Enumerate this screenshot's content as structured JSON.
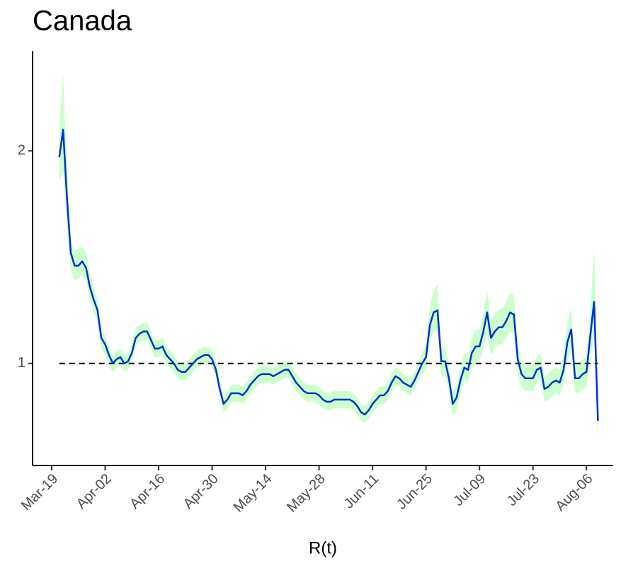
{
  "chart_data": {
    "type": "line",
    "title": "Canada",
    "xlabel": "R(t)",
    "x": [
      "Mar-21",
      "Mar-22",
      "Mar-23",
      "Mar-24",
      "Mar-25",
      "Mar-26",
      "Mar-27",
      "Mar-28",
      "Mar-29",
      "Mar-30",
      "Mar-31",
      "Apr-01",
      "Apr-02",
      "Apr-03",
      "Apr-04",
      "Apr-05",
      "Apr-06",
      "Apr-07",
      "Apr-08",
      "Apr-09",
      "Apr-10",
      "Apr-11",
      "Apr-12",
      "Apr-13",
      "Apr-14",
      "Apr-15",
      "Apr-16",
      "Apr-17",
      "Apr-18",
      "Apr-19",
      "Apr-20",
      "Apr-21",
      "Apr-22",
      "Apr-23",
      "Apr-24",
      "Apr-25",
      "Apr-26",
      "Apr-27",
      "Apr-28",
      "Apr-29",
      "Apr-30",
      "May-01",
      "May-02",
      "May-03",
      "May-04",
      "May-05",
      "May-06",
      "May-07",
      "May-08",
      "May-09",
      "May-10",
      "May-11",
      "May-12",
      "May-13",
      "May-14",
      "May-15",
      "May-16",
      "May-17",
      "May-18",
      "May-19",
      "May-20",
      "May-21",
      "May-22",
      "May-23",
      "May-24",
      "May-25",
      "May-26",
      "May-27",
      "May-28",
      "May-29",
      "May-30",
      "May-31",
      "Jun-01",
      "Jun-02",
      "Jun-03",
      "Jun-04",
      "Jun-05",
      "Jun-06",
      "Jun-07",
      "Jun-08",
      "Jun-09",
      "Jun-10",
      "Jun-11",
      "Jun-12",
      "Jun-13",
      "Jun-14",
      "Jun-15",
      "Jun-16",
      "Jun-17",
      "Jun-18",
      "Jun-19",
      "Jun-20",
      "Jun-21",
      "Jun-22",
      "Jun-23",
      "Jun-24",
      "Jun-25",
      "Jun-26",
      "Jun-27",
      "Jun-28",
      "Jun-29",
      "Jun-30",
      "Jul-01",
      "Jul-02",
      "Jul-03",
      "Jul-04",
      "Jul-05",
      "Jul-06",
      "Jul-07",
      "Jul-08",
      "Jul-09",
      "Jul-10",
      "Jul-11",
      "Jul-12",
      "Jul-13",
      "Jul-14",
      "Jul-15",
      "Jul-16",
      "Jul-17",
      "Jul-18",
      "Jul-19",
      "Jul-20",
      "Jul-21",
      "Jul-22",
      "Jul-23",
      "Jul-24",
      "Jul-25",
      "Jul-26",
      "Jul-27",
      "Jul-28",
      "Jul-29",
      "Jul-30",
      "Jul-31",
      "Aug-01",
      "Aug-02",
      "Aug-03",
      "Aug-04",
      "Aug-05",
      "Aug-06",
      "Aug-07",
      "Aug-08",
      "Aug-09"
    ],
    "values": [
      1.97,
      2.1,
      1.78,
      1.52,
      1.46,
      1.46,
      1.48,
      1.45,
      1.36,
      1.3,
      1.25,
      1.12,
      1.09,
      1.04,
      1.0,
      1.02,
      1.03,
      1.0,
      1.01,
      1.05,
      1.12,
      1.14,
      1.15,
      1.15,
      1.11,
      1.07,
      1.07,
      1.08,
      1.04,
      1.02,
      1.0,
      0.97,
      0.96,
      0.96,
      0.98,
      1.0,
      1.02,
      1.03,
      1.04,
      1.04,
      1.02,
      0.97,
      0.88,
      0.81,
      0.83,
      0.86,
      0.86,
      0.86,
      0.85,
      0.87,
      0.9,
      0.92,
      0.94,
      0.95,
      0.95,
      0.95,
      0.94,
      0.95,
      0.96,
      0.97,
      0.97,
      0.94,
      0.91,
      0.89,
      0.87,
      0.86,
      0.86,
      0.86,
      0.85,
      0.83,
      0.82,
      0.82,
      0.83,
      0.83,
      0.83,
      0.83,
      0.83,
      0.82,
      0.8,
      0.77,
      0.76,
      0.78,
      0.81,
      0.83,
      0.85,
      0.85,
      0.87,
      0.91,
      0.94,
      0.93,
      0.91,
      0.9,
      0.89,
      0.92,
      0.96,
      1.0,
      1.03,
      1.18,
      1.24,
      1.25,
      1.01,
      1.01,
      0.93,
      0.81,
      0.84,
      0.92,
      0.98,
      0.97,
      1.05,
      1.08,
      1.08,
      1.15,
      1.24,
      1.12,
      1.15,
      1.17,
      1.17,
      1.2,
      1.24,
      1.23,
      1.02,
      0.95,
      0.93,
      0.93,
      0.93,
      0.97,
      0.98,
      0.88,
      0.89,
      0.91,
      0.92,
      0.91,
      0.97,
      1.1,
      1.16,
      0.93,
      0.93,
      0.95,
      0.96,
      1.13,
      1.29,
      0.73
    ],
    "lower": [
      1.86,
      1.9,
      1.65,
      1.44,
      1.39,
      1.4,
      1.42,
      1.39,
      1.3,
      1.24,
      1.19,
      1.07,
      1.04,
      0.99,
      0.96,
      0.98,
      0.99,
      0.96,
      0.97,
      1.01,
      1.08,
      1.1,
      1.11,
      1.11,
      1.07,
      1.03,
      1.03,
      1.04,
      1.0,
      0.98,
      0.96,
      0.93,
      0.92,
      0.92,
      0.94,
      0.96,
      0.98,
      0.99,
      1.0,
      1.0,
      0.98,
      0.93,
      0.84,
      0.77,
      0.79,
      0.82,
      0.82,
      0.82,
      0.81,
      0.83,
      0.86,
      0.88,
      0.9,
      0.91,
      0.91,
      0.91,
      0.9,
      0.91,
      0.92,
      0.93,
      0.93,
      0.9,
      0.87,
      0.85,
      0.83,
      0.82,
      0.82,
      0.82,
      0.81,
      0.79,
      0.78,
      0.78,
      0.79,
      0.79,
      0.79,
      0.79,
      0.79,
      0.78,
      0.76,
      0.73,
      0.72,
      0.74,
      0.77,
      0.79,
      0.81,
      0.81,
      0.83,
      0.87,
      0.9,
      0.89,
      0.87,
      0.86,
      0.85,
      0.88,
      0.92,
      0.95,
      0.97,
      1.1,
      1.15,
      1.16,
      0.94,
      0.94,
      0.87,
      0.75,
      0.78,
      0.86,
      0.92,
      0.91,
      0.98,
      1.01,
      1.01,
      1.07,
      1.14,
      1.04,
      1.07,
      1.09,
      1.09,
      1.12,
      1.15,
      1.14,
      0.95,
      0.89,
      0.87,
      0.87,
      0.87,
      0.91,
      0.92,
      0.82,
      0.83,
      0.85,
      0.86,
      0.85,
      0.9,
      1.01,
      1.06,
      0.86,
      0.86,
      0.88,
      0.89,
      1.02,
      1.14,
      0.62
    ],
    "upper": [
      2.1,
      2.37,
      1.92,
      1.58,
      1.53,
      1.54,
      1.55,
      1.52,
      1.42,
      1.36,
      1.31,
      1.17,
      1.13,
      1.08,
      1.04,
      1.06,
      1.07,
      1.04,
      1.05,
      1.09,
      1.17,
      1.18,
      1.19,
      1.19,
      1.15,
      1.11,
      1.11,
      1.12,
      1.08,
      1.06,
      1.04,
      1.01,
      1.0,
      1.0,
      1.02,
      1.04,
      1.06,
      1.07,
      1.08,
      1.08,
      1.06,
      1.01,
      0.92,
      0.85,
      0.87,
      0.9,
      0.9,
      0.9,
      0.89,
      0.91,
      0.94,
      0.96,
      0.98,
      0.99,
      0.99,
      0.99,
      0.98,
      0.99,
      1.0,
      1.01,
      1.01,
      0.98,
      0.95,
      0.93,
      0.91,
      0.9,
      0.9,
      0.9,
      0.89,
      0.87,
      0.86,
      0.86,
      0.87,
      0.87,
      0.87,
      0.87,
      0.87,
      0.86,
      0.84,
      0.81,
      0.8,
      0.82,
      0.85,
      0.87,
      0.89,
      0.89,
      0.91,
      0.95,
      0.98,
      0.97,
      0.95,
      0.94,
      0.93,
      0.96,
      1.0,
      1.05,
      1.09,
      1.27,
      1.34,
      1.37,
      1.08,
      1.08,
      0.99,
      0.87,
      0.9,
      0.98,
      1.05,
      1.04,
      1.12,
      1.16,
      1.16,
      1.24,
      1.34,
      1.2,
      1.23,
      1.25,
      1.26,
      1.29,
      1.33,
      1.32,
      1.09,
      1.01,
      0.99,
      0.99,
      0.99,
      1.03,
      1.05,
      0.94,
      0.95,
      0.97,
      0.98,
      0.97,
      1.04,
      1.19,
      1.26,
      1.0,
      1.0,
      1.02,
      1.03,
      1.25,
      1.54,
      0.85
    ],
    "color": "#0033cc",
    "band_color": "#ccffcc",
    "reference_line": 1,
    "xlim": [
      "Mar-14",
      "Aug-13"
    ],
    "xticks": [
      "Mar-19",
      "Apr-02",
      "Apr-16",
      "Apr-30",
      "May-14",
      "May-28",
      "Jun-11",
      "Jun-25",
      "Jul-09",
      "Jul-23",
      "Aug-06"
    ],
    "ylim": [
      0.52,
      2.47
    ],
    "yticks": [
      1,
      2
    ]
  }
}
